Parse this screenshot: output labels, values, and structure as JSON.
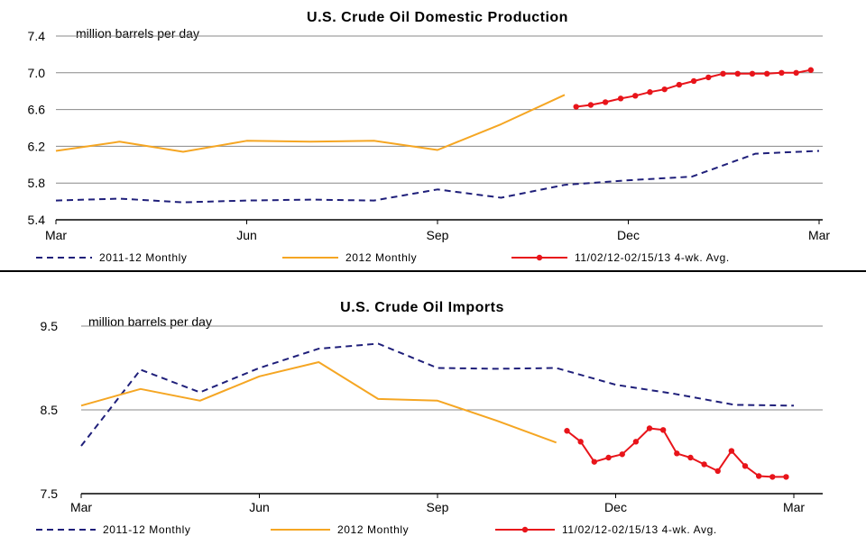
{
  "chart_data": [
    {
      "type": "line",
      "title": "U.S. Crude Oil Domestic Production",
      "ylabel": "million barrels per day",
      "xlabel": "",
      "ylim": [
        5.4,
        7.4
      ],
      "yticks": [
        "7.4",
        "7.0",
        "6.6",
        "6.2",
        "5.8",
        "5.4"
      ],
      "xticks": [
        "Mar",
        "Jun",
        "Sep",
        "Dec",
        "Mar"
      ],
      "grid": "horizontal",
      "legend_position": "bottom",
      "series": [
        {
          "name": "2011-12 Monthly",
          "color": "#1f1f7a",
          "style": "dashed",
          "x": [
            0,
            1,
            2,
            3,
            4,
            5,
            6,
            7,
            8,
            9,
            10,
            11,
            12
          ],
          "y": [
            5.61,
            5.63,
            5.59,
            5.61,
            5.62,
            5.61,
            5.73,
            5.64,
            5.78,
            5.83,
            5.87,
            6.12,
            6.15
          ]
        },
        {
          "name": "2012 Monthly",
          "color": "#f5a623",
          "style": "solid",
          "x": [
            0,
            1,
            2,
            3,
            4,
            5,
            6,
            7,
            8
          ],
          "y": [
            6.15,
            6.25,
            6.14,
            6.26,
            6.25,
            6.26,
            6.16,
            6.44,
            6.76
          ]
        },
        {
          "name": "11/02/12-02/15/13  4-wk. Avg.",
          "color": "#e8141a",
          "style": "marker",
          "x": [
            8.18,
            8.41,
            8.64,
            8.88,
            9.11,
            9.34,
            9.57,
            9.8,
            10.03,
            10.26,
            10.49,
            10.72,
            10.95,
            11.18,
            11.41,
            11.64,
            11.87
          ],
          "y": [
            6.63,
            6.65,
            6.68,
            6.72,
            6.75,
            6.79,
            6.82,
            6.87,
            6.91,
            6.95,
            6.99,
            6.99,
            6.99,
            6.99,
            7.0,
            7.0,
            7.03
          ]
        }
      ]
    },
    {
      "type": "line",
      "title": "U.S. Crude Oil Imports",
      "ylabel": "million barrels per day",
      "xlabel": "",
      "ylim": [
        7.5,
        9.5
      ],
      "yticks": [
        "9.5",
        "8.5",
        "7.5"
      ],
      "xticks": [
        "Mar",
        "Jun",
        "Sep",
        "Dec",
        "Mar"
      ],
      "grid": "horizontal",
      "legend_position": "bottom",
      "series": [
        {
          "name": "2011-12 Monthly",
          "color": "#1f1f7a",
          "style": "dashed",
          "x": [
            0,
            1,
            2,
            3,
            4,
            5,
            6,
            7,
            8,
            9,
            10,
            11,
            12
          ],
          "y": [
            8.07,
            8.98,
            8.71,
            9.0,
            9.23,
            9.29,
            9.0,
            8.99,
            9.0,
            8.8,
            8.69,
            8.56,
            8.55
          ]
        },
        {
          "name": "2012 Monthly",
          "color": "#f5a623",
          "style": "solid",
          "x": [
            0,
            1,
            2,
            3,
            4,
            5,
            6,
            7,
            8
          ],
          "y": [
            8.55,
            8.75,
            8.61,
            8.9,
            9.07,
            8.63,
            8.61,
            8.37,
            8.11
          ]
        },
        {
          "name": "11/02/12-02/15/13  4-wk. Avg.",
          "color": "#e8141a",
          "style": "marker",
          "x": [
            8.18,
            8.41,
            8.64,
            8.88,
            9.11,
            9.34,
            9.57,
            9.8,
            10.03,
            10.26,
            10.49,
            10.72,
            10.95,
            11.18,
            11.41,
            11.64,
            11.87
          ],
          "y": [
            8.25,
            8.12,
            7.88,
            7.93,
            7.97,
            8.12,
            8.28,
            8.26,
            7.98,
            7.93,
            7.85,
            7.77,
            8.01,
            7.83,
            7.71,
            7.7,
            7.7
          ]
        }
      ]
    }
  ]
}
